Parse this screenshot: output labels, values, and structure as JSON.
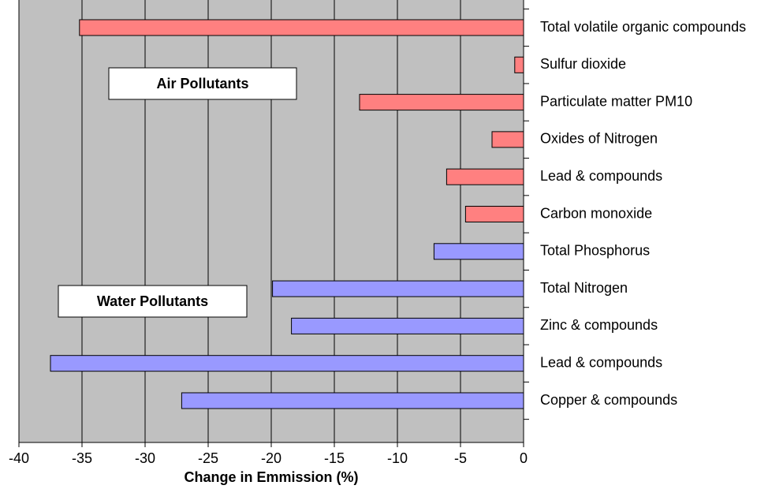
{
  "chart_data": {
    "type": "barh",
    "categories": [
      "Total volatile organic compounds",
      "Sulfur dioxide",
      "Particulate matter PM10",
      "Oxides of Nitrogen",
      "Lead & compounds",
      "Carbon monoxide",
      "Total Phosphorus",
      "Total Nitrogen",
      "Zinc & compounds",
      "Lead & compounds",
      "Copper & compounds"
    ],
    "values": [
      -35.2,
      -0.7,
      -13,
      -2.5,
      -6.1,
      -4.6,
      -7.1,
      -19.9,
      -18.4,
      -37.5,
      -27.1
    ],
    "colors": [
      "#ff8080",
      "#ff8080",
      "#ff8080",
      "#ff8080",
      "#ff8080",
      "#ff8080",
      "#9999ff",
      "#9999ff",
      "#9999ff",
      "#9999ff",
      "#9999ff"
    ],
    "xlabel": "Change in Emmission (%)",
    "xlim": [
      -40,
      0
    ],
    "xticks": [
      -40,
      -35,
      -30,
      -25,
      -20,
      -15,
      -10,
      -5,
      0
    ],
    "grid": true,
    "annotations": [
      "Air Pollutants",
      "Water Pollutants"
    ]
  }
}
